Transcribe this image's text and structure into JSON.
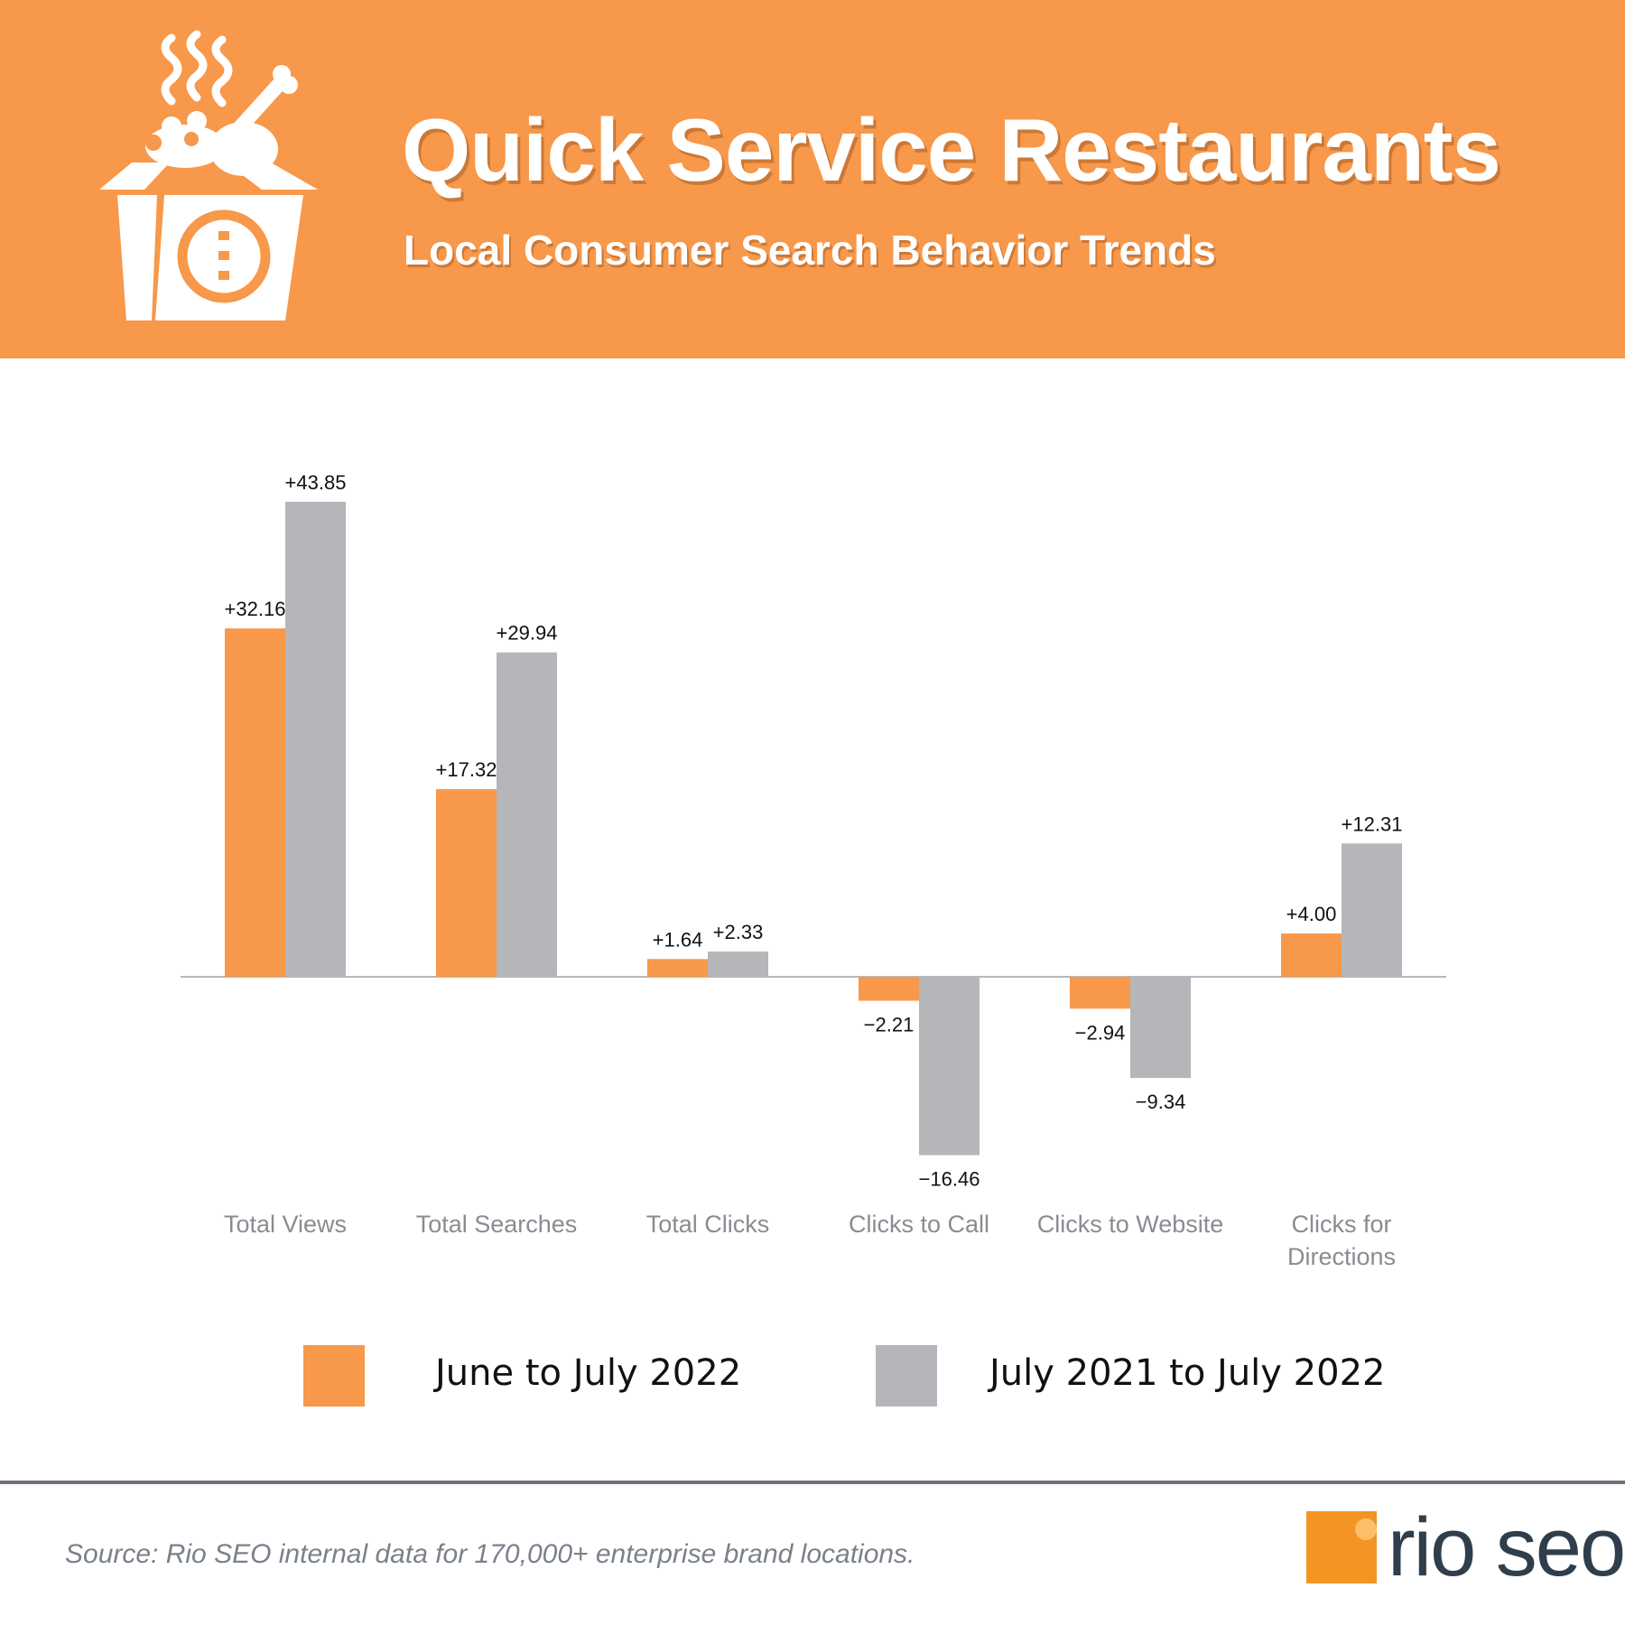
{
  "header": {
    "title": "Quick Service Restaurants",
    "subtitle": "Local Consumer Search Behavior Trends",
    "icon": "food-box-icon"
  },
  "colors": {
    "accent": "#F7984A",
    "series_orange": "#F7984A",
    "series_gray": "#B5B6BA",
    "axis": "#B8B9BD",
    "category_text": "#8A8C92"
  },
  "chart_data": {
    "type": "bar",
    "title": "Quick Service Restaurants",
    "subtitle": "Local Consumer Search Behavior Trends",
    "categories": [
      "Total Views",
      "Total Searches",
      "Total Clicks",
      "Clicks to Call",
      "Clicks to Website",
      "Clicks for Directions"
    ],
    "series": [
      {
        "name": "June to July 2022",
        "color": "#F7984A",
        "values": [
          32.16,
          17.32,
          1.64,
          -2.21,
          -2.94,
          4.0
        ],
        "labels": [
          "+32.16",
          "+17.32",
          "+1.64",
          "−2.21",
          "−2.94",
          "+4.00"
        ]
      },
      {
        "name": "July 2021 to July 2022",
        "color": "#B5B6BA",
        "values": [
          43.85,
          29.94,
          2.33,
          -16.46,
          -9.34,
          12.31
        ],
        "labels": [
          "+43.85",
          "+29.94",
          "+2.33",
          "−16.46",
          "−9.34",
          "+12.31"
        ]
      }
    ],
    "xlabel": "",
    "ylabel": "",
    "ylim": [
      -20,
      48
    ],
    "grid": false,
    "legend_position": "bottom"
  },
  "footer": {
    "source": "Source: Rio SEO internal data for 170,000+ enterprise brand locations.",
    "brand_text": "rio seo"
  }
}
